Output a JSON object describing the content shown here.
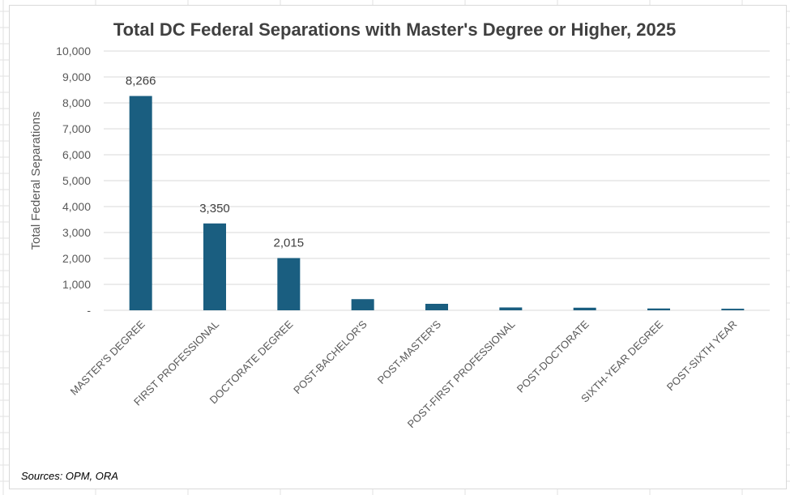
{
  "chart_data": {
    "type": "bar",
    "title": "Total DC Federal Separations with Master's Degree or Higher, 2025",
    "xlabel": "",
    "ylabel": "Total Federal Separations",
    "ylim": [
      0,
      10000
    ],
    "yticks": [
      0,
      1000,
      2000,
      3000,
      4000,
      5000,
      6000,
      7000,
      8000,
      9000,
      10000
    ],
    "ytick_labels": [
      "-",
      "1,000",
      "2,000",
      "3,000",
      "4,000",
      "5,000",
      "6,000",
      "7,000",
      "8,000",
      "9,000",
      "10,000"
    ],
    "categories": [
      "MASTER'S DEGREE",
      "FIRST PROFESSIONAL",
      "DOCTORATE DEGREE",
      "POST-BACHELOR'S",
      "POST-MASTER'S",
      "POST-FIRST PROFESSIONAL",
      "POST-DOCTORATE",
      "SIXTH-YEAR DEGREE",
      "POST-SIXTH YEAR"
    ],
    "values": [
      8266,
      3350,
      2015,
      430,
      250,
      110,
      100,
      70,
      60
    ],
    "data_labels": [
      "8,266",
      "3,350",
      "2,015",
      "",
      "",
      "",
      "",
      "",
      ""
    ],
    "bar_color": "#1a5e80",
    "grid": true,
    "legend": "none"
  },
  "source_note": "Sources: OPM, ORA"
}
